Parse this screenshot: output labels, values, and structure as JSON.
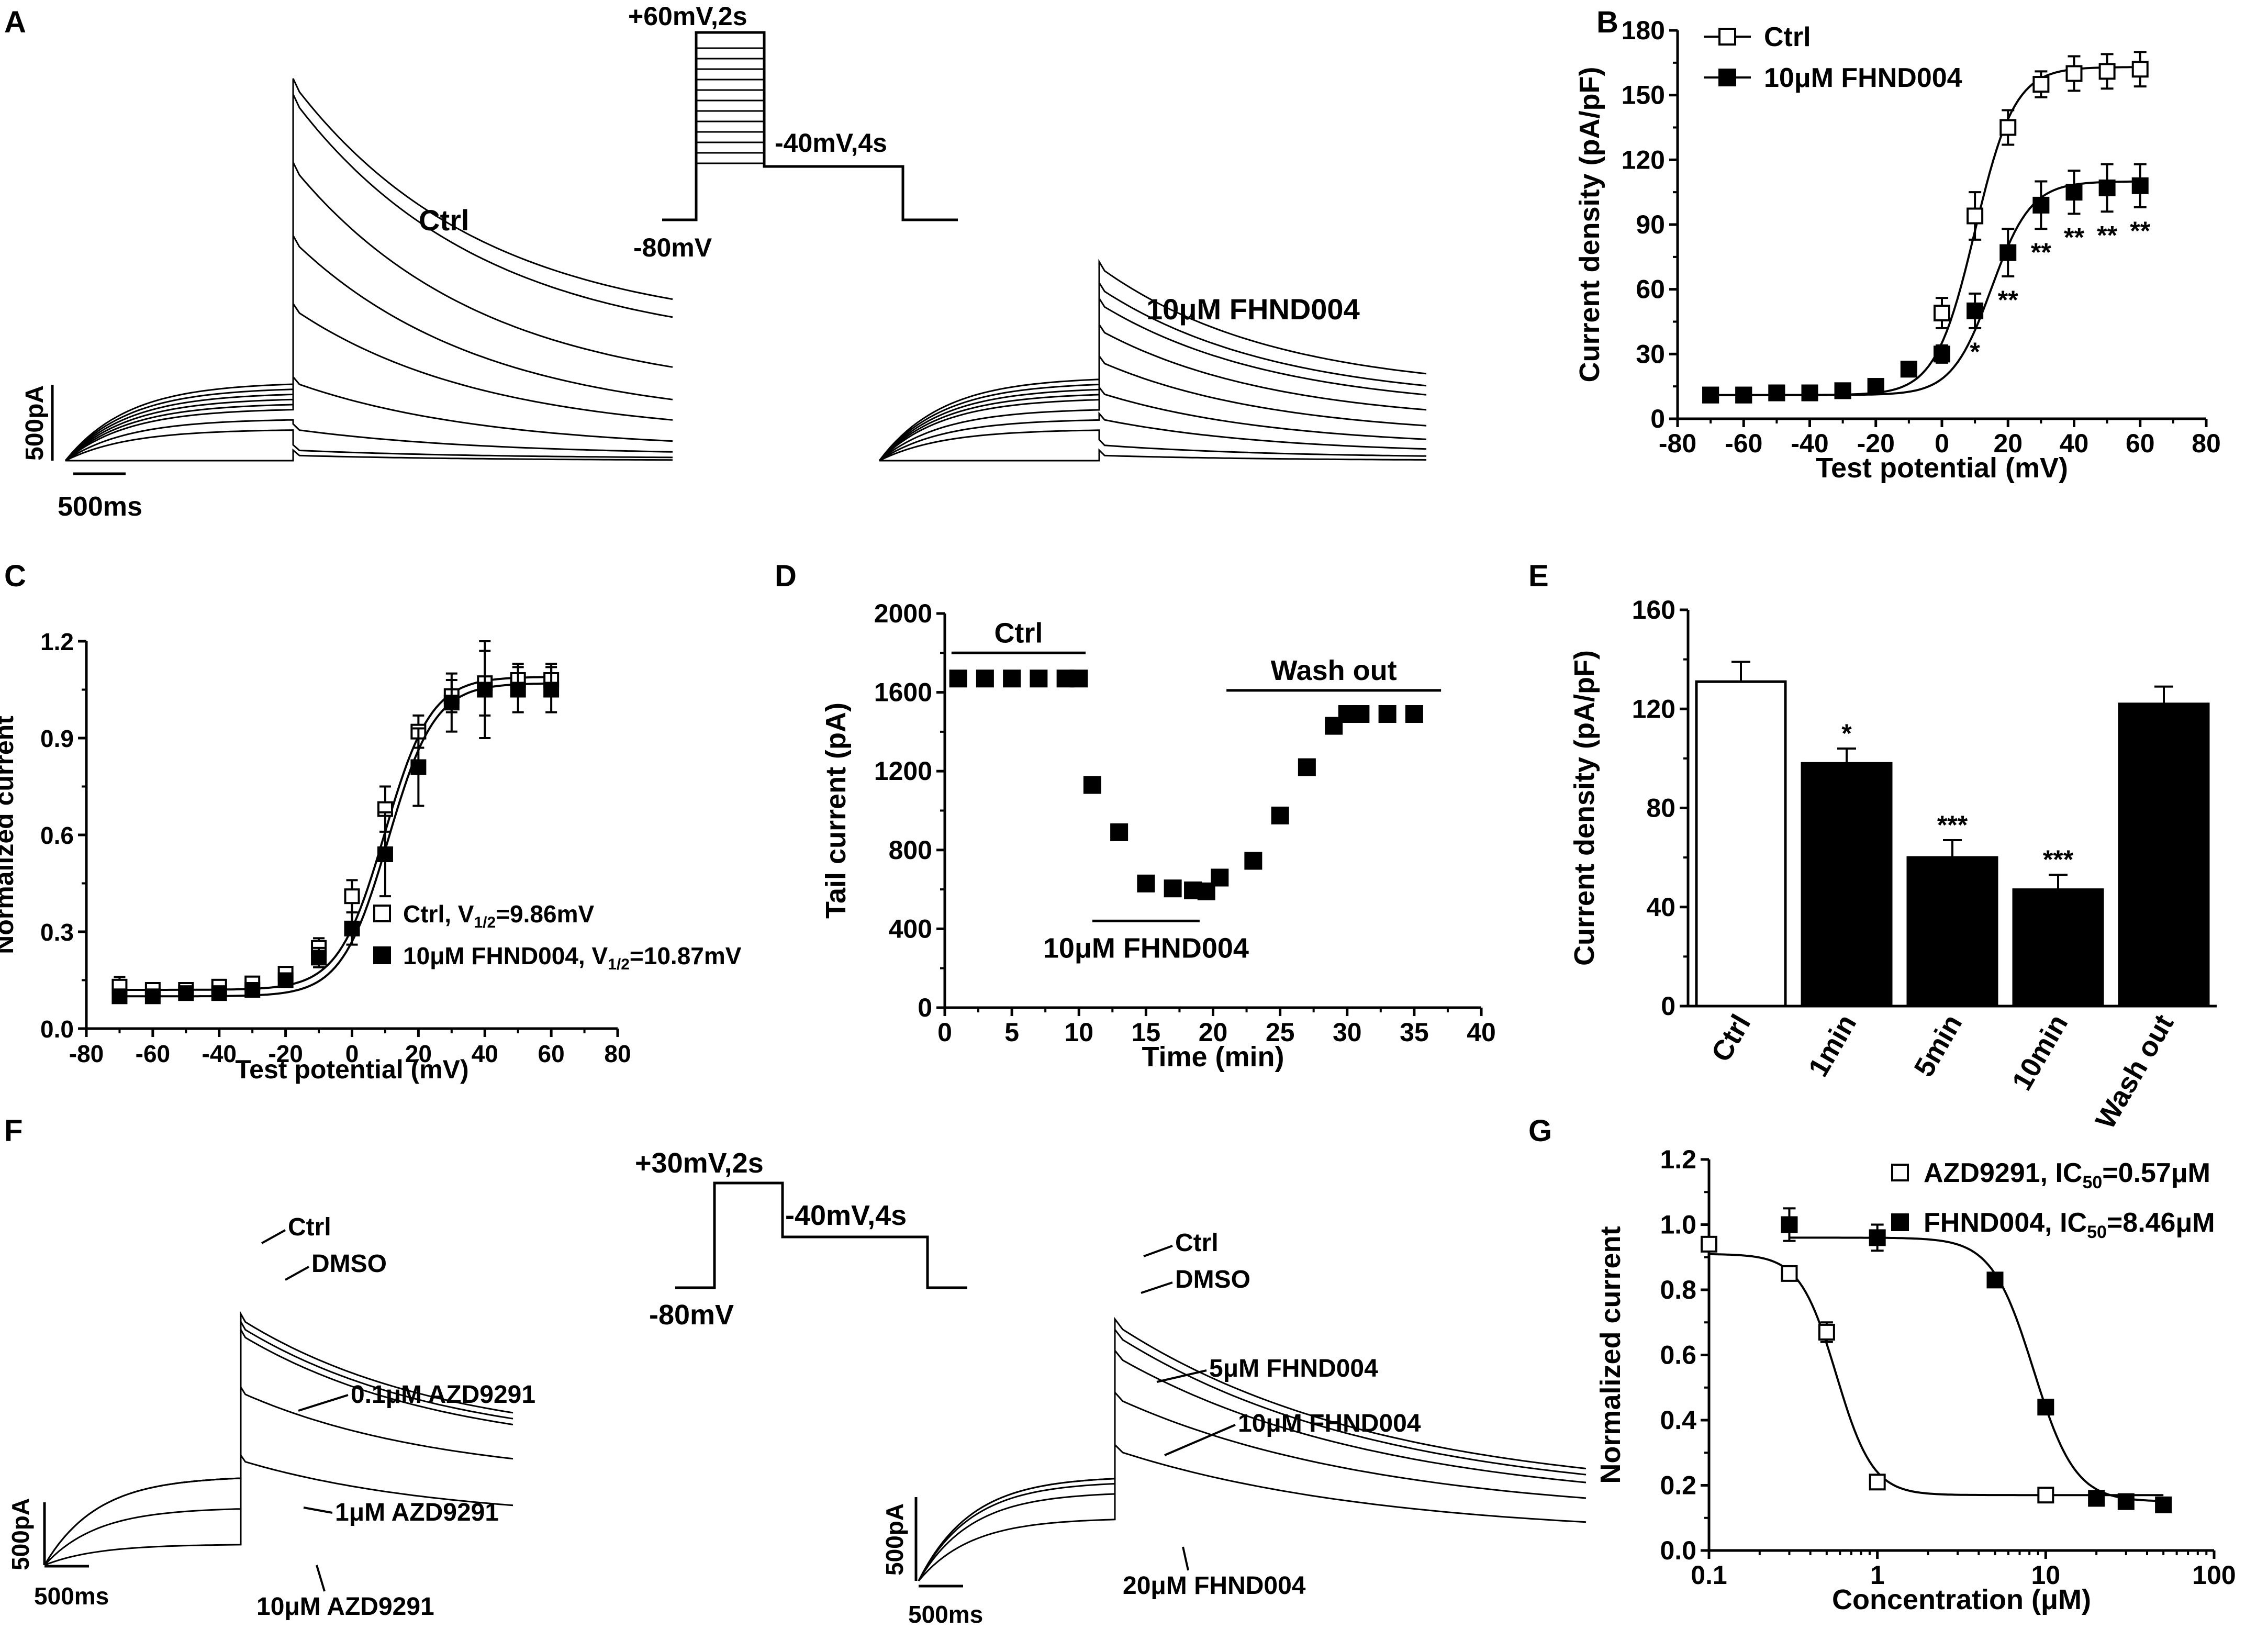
{
  "panel_labels": {
    "A": "A",
    "B": "B",
    "C": "C",
    "D": "D",
    "E": "E",
    "F": "F",
    "G": "G"
  },
  "panel_a": {
    "ctrl_label": "Ctrl",
    "drug_label": "10μM FHND004",
    "scale_current": "500pA",
    "scale_time": "500ms",
    "protocol": {
      "step_label": "+60mV,2s",
      "tail_label": "-40mV,4s",
      "holding_label": "-80mV"
    }
  },
  "panel_f": {
    "protocol": {
      "step_label": "+30mV,2s",
      "tail_label": "-40mV,4s",
      "holding_label": "-80mV"
    },
    "left_labels": [
      "Ctrl",
      "DMSO",
      "0.1μM AZD9291",
      "1μM AZD9291",
      "10μM AZD9291"
    ],
    "right_labels": [
      "Ctrl",
      "DMSO",
      "5μM FHND004",
      "10μM FHND004",
      "20μM FHND004"
    ],
    "scale_current": "500pA",
    "scale_time": "500ms"
  },
  "chart_data": [
    {
      "panel": "B",
      "type": "scatter",
      "xlabel": "Test potential (mV)",
      "ylabel": "Current density (pA/pF)",
      "xlim": [
        -80,
        80
      ],
      "ylim": [
        0,
        180
      ],
      "xticks": [
        "-80",
        "-60",
        "-40",
        "-20",
        "0",
        "20",
        "40",
        "60",
        "80"
      ],
      "yticks": [
        "0",
        "30",
        "60",
        "90",
        "120",
        "150",
        "180"
      ],
      "legend": "top-left",
      "series": [
        {
          "name": "Ctrl",
          "marker": "open-square",
          "x": [
            -70,
            -60,
            -50,
            -40,
            -30,
            -20,
            -10,
            0,
            10,
            20,
            30,
            40,
            50,
            60
          ],
          "y": [
            11,
            11,
            12,
            12,
            13,
            15,
            23,
            49,
            94,
            135,
            155,
            160,
            161,
            162
          ],
          "err": [
            3,
            2,
            2,
            2,
            2,
            2,
            3,
            7,
            11,
            8,
            6,
            8,
            8,
            8
          ]
        },
        {
          "name": "10μM FHND004",
          "marker": "filled-square",
          "x": [
            -70,
            -60,
            -50,
            -40,
            -30,
            -20,
            -10,
            0,
            10,
            20,
            30,
            40,
            50,
            60
          ],
          "y": [
            11,
            11,
            12,
            12,
            13,
            15,
            23,
            30,
            50,
            77,
            99,
            105,
            107,
            108
          ],
          "err": [
            2,
            2,
            2,
            2,
            2,
            2,
            3,
            4,
            8,
            11,
            11,
            10,
            11,
            10
          ]
        }
      ],
      "significance": [
        {
          "x": 10,
          "label": "*"
        },
        {
          "x": 20,
          "label": "**"
        },
        {
          "x": 30,
          "label": "**"
        },
        {
          "x": 40,
          "label": "**"
        },
        {
          "x": 50,
          "label": "**"
        },
        {
          "x": 60,
          "label": "**"
        }
      ]
    },
    {
      "panel": "C",
      "type": "scatter",
      "xlabel": "Test potential (mV)",
      "ylabel": "Normalized current",
      "xlim": [
        -80,
        80
      ],
      "ylim": [
        0,
        1.2
      ],
      "xticks": [
        "-80",
        "-60",
        "-40",
        "-20",
        "0",
        "20",
        "40",
        "60",
        "80"
      ],
      "yticks": [
        "0.0",
        "0.3",
        "0.6",
        "0.9",
        "1.2"
      ],
      "legend": "bottom-right",
      "series": [
        {
          "name": "Ctrl, V",
          "sub": "1/2",
          "suffix": "=9.86mV",
          "marker": "open-square",
          "x": [
            -70,
            -60,
            -50,
            -40,
            -30,
            -20,
            -10,
            0,
            10,
            20,
            30,
            40,
            50,
            60
          ],
          "y": [
            0.13,
            0.12,
            0.12,
            0.13,
            0.14,
            0.17,
            0.25,
            0.41,
            0.68,
            0.92,
            1.03,
            1.07,
            1.08,
            1.08
          ],
          "err": [
            0.03,
            0.02,
            0.02,
            0.02,
            0.02,
            0.02,
            0.03,
            0.05,
            0.07,
            0.05,
            0.05,
            0.1,
            0.05,
            0.05
          ]
        },
        {
          "name": "10μM FHND004, V",
          "sub": "1/2",
          "suffix": "=10.87mV",
          "marker": "filled-square",
          "x": [
            -70,
            -60,
            -50,
            -40,
            -30,
            -20,
            -10,
            0,
            10,
            20,
            30,
            40,
            50,
            60
          ],
          "y": [
            0.1,
            0.1,
            0.11,
            0.11,
            0.12,
            0.15,
            0.22,
            0.31,
            0.54,
            0.81,
            1.01,
            1.05,
            1.05,
            1.05
          ],
          "err": [
            0.02,
            0.02,
            0.02,
            0.02,
            0.02,
            0.02,
            0.03,
            0.05,
            0.13,
            0.12,
            0.09,
            0.15,
            0.07,
            0.07
          ]
        }
      ]
    },
    {
      "panel": "D",
      "type": "scatter",
      "xlabel": "Time (min)",
      "ylabel": "Tail current (pA)",
      "xlim": [
        0,
        40
      ],
      "ylim": [
        0,
        2000
      ],
      "xticks": [
        "0",
        "5",
        "10",
        "15",
        "20",
        "25",
        "30",
        "35",
        "40"
      ],
      "yticks": [
        "0",
        "400",
        "800",
        "1200",
        "1600",
        "2000"
      ],
      "x": [
        1,
        3,
        5,
        7,
        9,
        10,
        11,
        13,
        15,
        17,
        18.5,
        19.5,
        20.5,
        23,
        25,
        27,
        29,
        30,
        31,
        33,
        35
      ],
      "y": [
        1670,
        1670,
        1670,
        1670,
        1670,
        1670,
        1130,
        890,
        630,
        605,
        595,
        590,
        660,
        745,
        975,
        1220,
        1430,
        1490,
        1490,
        1490,
        1490
      ],
      "annotations": [
        {
          "label": "Ctrl",
          "x_start": 0.5,
          "x_end": 10.5,
          "y": 1800
        },
        {
          "label": "Wash out",
          "x_start": 21,
          "x_end": 37,
          "y": 1610
        },
        {
          "label": "10μM FHND004",
          "x_start": 11,
          "x_end": 19,
          "y": 440
        }
      ]
    },
    {
      "panel": "E",
      "type": "bar",
      "ylabel": "Current density (pA/pF)",
      "ylim": [
        0,
        160
      ],
      "yticks": [
        "0",
        "40",
        "80",
        "120",
        "160"
      ],
      "categories": [
        "Ctrl",
        "1min",
        "5min",
        "10min",
        "Wash out"
      ],
      "values": [
        131,
        98,
        60,
        47,
        122
      ],
      "err": [
        8,
        6,
        7,
        6,
        7
      ],
      "fills": [
        "open",
        "filled",
        "filled",
        "filled",
        "filled"
      ],
      "significance": [
        "",
        "*",
        "***",
        "***",
        ""
      ]
    },
    {
      "panel": "G",
      "type": "scatter",
      "xlabel": "Concentration (μM)",
      "ylabel": "Normalized current",
      "xscale": "log",
      "xlim": [
        0.1,
        100
      ],
      "ylim": [
        0,
        1.2
      ],
      "xticks": [
        "0.1",
        "1",
        "10",
        "100"
      ],
      "yticks": [
        "0.0",
        "0.2",
        "0.4",
        "0.6",
        "0.8",
        "1.0",
        "1.2"
      ],
      "legend": "top-right",
      "series": [
        {
          "name": "AZD9291, IC",
          "sub": "50",
          "suffix": "=0.57μM",
          "marker": "open-square",
          "x": [
            0.1,
            0.3,
            0.5,
            1,
            10
          ],
          "y": [
            0.94,
            0.85,
            0.67,
            0.21,
            0.17
          ],
          "err": [
            0.02,
            0.02,
            0.03,
            0.02,
            0.01
          ],
          "fit": {
            "top": 0.91,
            "bottom": 0.17,
            "ic50": 0.57,
            "hill": 4
          }
        },
        {
          "name": "FHND004, IC",
          "sub": "50",
          "suffix": "=8.46μM",
          "marker": "filled-square",
          "x": [
            0.3,
            1,
            5,
            10,
            20,
            30,
            50
          ],
          "y": [
            1.0,
            0.96,
            0.83,
            0.44,
            0.16,
            0.15,
            0.14
          ],
          "err": [
            0.05,
            0.04,
            0.01,
            0.01,
            0.01,
            0.01,
            0.01
          ],
          "fit": {
            "top": 0.96,
            "bottom": 0.15,
            "ic50": 8.46,
            "hill": 3.5
          }
        }
      ]
    }
  ]
}
